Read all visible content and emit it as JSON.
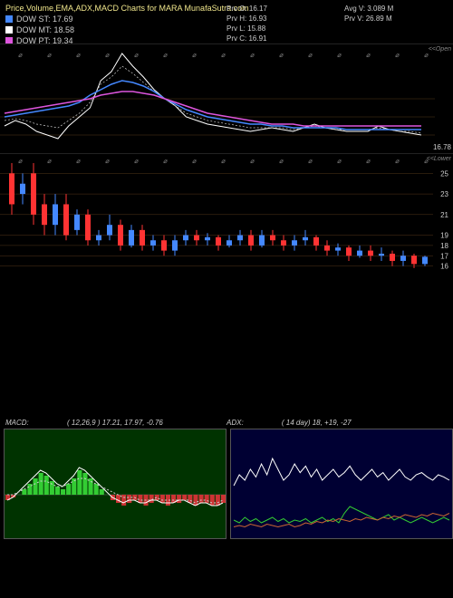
{
  "header": {
    "title": "Price,Volume,EMA,ADX,MACD Charts for MARA MunafaSutra.com",
    "legends": [
      {
        "color": "#4488ff",
        "label": "DOW ST: 17.69"
      },
      {
        "color": "#ffffff",
        "label": "DOW MT: 18.58"
      },
      {
        "color": "#dd55dd",
        "label": "DOW PT: 19.34"
      }
    ],
    "infoLeft": {
      "l1": "Prv   O: 16.17",
      "l2": "Prv   H: 16.93",
      "l3": "Prv   L: 15.88",
      "l4": "Prv   C: 16.91"
    },
    "infoRight": {
      "l1": "Avg V: 3.089 M",
      "l2": "Prv  V: 26.89 M"
    }
  },
  "panel1": {
    "cornerRight": "<<Open",
    "rightLabel": "16.78",
    "lines": {
      "white": [
        25,
        28,
        26,
        22,
        20,
        18,
        25,
        30,
        35,
        50,
        55,
        65,
        58,
        52,
        45,
        40,
        36,
        30,
        28,
        26,
        25,
        24,
        23,
        22,
        23,
        24,
        23,
        22,
        24,
        26,
        24,
        23,
        22,
        22,
        22,
        25,
        23,
        22,
        21,
        20
      ],
      "blue": [
        30,
        31,
        32,
        33,
        34,
        35,
        36,
        38,
        42,
        45,
        48,
        50,
        49,
        47,
        44,
        40,
        37,
        34,
        32,
        30,
        29,
        28,
        27,
        26,
        26,
        25,
        25,
        24,
        24,
        24,
        24,
        24,
        23,
        23,
        23,
        23,
        23,
        23,
        23,
        23
      ],
      "pink": [
        32,
        33,
        34,
        35,
        36,
        37,
        38,
        39,
        40,
        42,
        43,
        44,
        44,
        43,
        42,
        40,
        38,
        36,
        34,
        32,
        31,
        30,
        29,
        28,
        27,
        26,
        26,
        26,
        25,
        25,
        25,
        25,
        25,
        25,
        25,
        25,
        25,
        25,
        25,
        25
      ],
      "dashed": [
        28,
        29,
        28,
        26,
        25,
        24,
        28,
        32,
        38,
        48,
        52,
        58,
        54,
        49,
        44,
        40,
        36,
        32,
        30,
        28,
        27,
        26,
        25,
        24,
        24,
        24,
        24,
        23,
        24,
        25,
        24,
        23,
        23,
        23,
        23,
        24,
        23,
        22,
        22,
        21
      ]
    },
    "gridLevels": [
      20,
      30,
      40
    ],
    "height": 120
  },
  "panel2": {
    "cornerRight": "<<Lower",
    "yticks": [
      25,
      23,
      21,
      19,
      18,
      17,
      16
    ],
    "height": 140,
    "candles": [
      {
        "x": 10,
        "o": 25,
        "c": 22,
        "h": 26,
        "l": 21,
        "col": "#ff3333"
      },
      {
        "x": 22,
        "o": 23,
        "c": 24,
        "h": 25,
        "l": 22,
        "col": "#4488ff"
      },
      {
        "x": 34,
        "o": 25,
        "c": 21,
        "h": 26,
        "l": 20,
        "col": "#ff3333"
      },
      {
        "x": 46,
        "o": 22,
        "c": 20,
        "h": 23,
        "l": 19,
        "col": "#ff3333"
      },
      {
        "x": 58,
        "o": 20,
        "c": 22,
        "h": 23,
        "l": 19,
        "col": "#4488ff"
      },
      {
        "x": 70,
        "o": 22,
        "c": 19,
        "h": 23,
        "l": 18.5,
        "col": "#ff3333"
      },
      {
        "x": 82,
        "o": 19.5,
        "c": 21,
        "h": 21.5,
        "l": 19,
        "col": "#4488ff"
      },
      {
        "x": 94,
        "o": 21,
        "c": 18.5,
        "h": 21.5,
        "l": 18,
        "col": "#ff3333"
      },
      {
        "x": 106,
        "o": 18.5,
        "c": 19,
        "h": 19.5,
        "l": 18,
        "col": "#4488ff"
      },
      {
        "x": 118,
        "o": 19,
        "c": 20,
        "h": 21,
        "l": 18.5,
        "col": "#4488ff"
      },
      {
        "x": 130,
        "o": 20,
        "c": 18,
        "h": 20.5,
        "l": 17.5,
        "col": "#ff3333"
      },
      {
        "x": 142,
        "o": 18,
        "c": 19.5,
        "h": 20,
        "l": 17.8,
        "col": "#4488ff"
      },
      {
        "x": 154,
        "o": 19.5,
        "c": 18,
        "h": 20,
        "l": 17.5,
        "col": "#ff3333"
      },
      {
        "x": 166,
        "o": 18,
        "c": 18.5,
        "h": 19,
        "l": 17.5,
        "col": "#4488ff"
      },
      {
        "x": 178,
        "o": 18.5,
        "c": 17.5,
        "h": 19,
        "l": 17,
        "col": "#ff3333"
      },
      {
        "x": 190,
        "o": 17.5,
        "c": 18.5,
        "h": 19,
        "l": 17,
        "col": "#4488ff"
      },
      {
        "x": 202,
        "o": 18.5,
        "c": 19,
        "h": 19.5,
        "l": 18,
        "col": "#4488ff"
      },
      {
        "x": 214,
        "o": 19,
        "c": 18.5,
        "h": 19.5,
        "l": 18,
        "col": "#ff3333"
      },
      {
        "x": 226,
        "o": 18.5,
        "c": 18.8,
        "h": 19.2,
        "l": 18,
        "col": "#4488ff"
      },
      {
        "x": 238,
        "o": 18.8,
        "c": 18,
        "h": 19,
        "l": 17.5,
        "col": "#ff3333"
      },
      {
        "x": 250,
        "o": 18,
        "c": 18.5,
        "h": 19,
        "l": 17.8,
        "col": "#4488ff"
      },
      {
        "x": 262,
        "o": 18.5,
        "c": 19,
        "h": 19.5,
        "l": 18,
        "col": "#4488ff"
      },
      {
        "x": 274,
        "o": 19,
        "c": 18,
        "h": 19.5,
        "l": 17.5,
        "col": "#ff3333"
      },
      {
        "x": 286,
        "o": 18,
        "c": 19,
        "h": 19.5,
        "l": 17.8,
        "col": "#4488ff"
      },
      {
        "x": 298,
        "o": 19,
        "c": 18.5,
        "h": 19.5,
        "l": 18,
        "col": "#ff3333"
      },
      {
        "x": 310,
        "o": 18.5,
        "c": 18,
        "h": 19,
        "l": 17.5,
        "col": "#ff3333"
      },
      {
        "x": 322,
        "o": 18,
        "c": 18.5,
        "h": 19,
        "l": 17.5,
        "col": "#4488ff"
      },
      {
        "x": 334,
        "o": 18.5,
        "c": 18.8,
        "h": 19.5,
        "l": 18,
        "col": "#4488ff"
      },
      {
        "x": 346,
        "o": 18.8,
        "c": 18,
        "h": 19,
        "l": 17.5,
        "col": "#ff3333"
      },
      {
        "x": 358,
        "o": 18,
        "c": 17.5,
        "h": 18.5,
        "l": 17,
        "col": "#ff3333"
      },
      {
        "x": 370,
        "o": 17.5,
        "c": 17.8,
        "h": 18.2,
        "l": 17,
        "col": "#4488ff"
      },
      {
        "x": 382,
        "o": 17.8,
        "c": 17,
        "h": 18,
        "l": 16.5,
        "col": "#ff3333"
      },
      {
        "x": 394,
        "o": 17,
        "c": 17.5,
        "h": 18,
        "l": 16.8,
        "col": "#4488ff"
      },
      {
        "x": 406,
        "o": 17.5,
        "c": 17,
        "h": 18,
        "l": 16.5,
        "col": "#ff3333"
      },
      {
        "x": 418,
        "o": 17,
        "c": 17.2,
        "h": 17.8,
        "l": 16.5,
        "col": "#4488ff"
      },
      {
        "x": 430,
        "o": 17.2,
        "c": 16.5,
        "h": 17.5,
        "l": 16,
        "col": "#ff3333"
      },
      {
        "x": 442,
        "o": 16.5,
        "c": 17,
        "h": 17.5,
        "l": 16,
        "col": "#4488ff"
      },
      {
        "x": 454,
        "o": 17,
        "c": 16.2,
        "h": 17.2,
        "l": 15.8,
        "col": "#ff3333"
      },
      {
        "x": 466,
        "o": 16.2,
        "c": 16.9,
        "h": 17,
        "l": 16,
        "col": "#4488ff"
      }
    ]
  },
  "subHeader": {
    "macd": "MACD:",
    "macdVals": "( 12,26,9 ) 17.21,  17.97,  -0.76",
    "adx": "ADX:",
    "adxVals": "( 14   day) 18,  +19,  -27"
  },
  "macdPanel": {
    "bg": "#003300",
    "histColors": {
      "pos": "#33cc33",
      "neg": "#cc3333"
    },
    "hist": [
      -2,
      -1,
      0,
      2,
      4,
      6,
      8,
      7,
      5,
      3,
      2,
      4,
      6,
      9,
      8,
      6,
      4,
      2,
      0,
      -2,
      -3,
      -4,
      -3,
      -2,
      -3,
      -4,
      -3,
      -2,
      -3,
      -4,
      -3,
      -3,
      -2,
      -3,
      -4,
      -3,
      -3,
      -4,
      -4,
      -3
    ],
    "signal": [
      0,
      0,
      1,
      2,
      3,
      4,
      5,
      5,
      4,
      3,
      3,
      4,
      5,
      6,
      6,
      5,
      4,
      3,
      2,
      1,
      0,
      -1,
      -1,
      -1,
      -2,
      -2,
      -2,
      -1,
      -2,
      -2,
      -2,
      -2,
      -2,
      -2,
      -3,
      -2,
      -2,
      -3,
      -3,
      -2
    ],
    "macd": [
      -2,
      -1,
      1,
      3,
      5,
      7,
      9,
      8,
      6,
      4,
      3,
      5,
      7,
      10,
      9,
      7,
      5,
      3,
      1,
      -1,
      -2,
      -3,
      -2,
      -2,
      -3,
      -3,
      -2,
      -2,
      -3,
      -3,
      -3,
      -2,
      -2,
      -3,
      -4,
      -3,
      -3,
      -4,
      -4,
      -3
    ]
  },
  "adxPanel": {
    "bg": "#000033",
    "adx": [
      40,
      50,
      45,
      55,
      48,
      60,
      50,
      65,
      55,
      45,
      50,
      60,
      52,
      58,
      48,
      55,
      45,
      50,
      55,
      48,
      52,
      58,
      50,
      45,
      50,
      55,
      48,
      52,
      45,
      50,
      55,
      48,
      45,
      50,
      52,
      48,
      45,
      50,
      48,
      45
    ],
    "plus": [
      10,
      8,
      12,
      9,
      11,
      8,
      10,
      12,
      9,
      11,
      8,
      10,
      9,
      11,
      8,
      10,
      12,
      9,
      11,
      8,
      15,
      20,
      18,
      16,
      14,
      12,
      10,
      12,
      14,
      10,
      12,
      10,
      8,
      10,
      12,
      10,
      8,
      10,
      12,
      10
    ],
    "minus": [
      5,
      6,
      5,
      7,
      6,
      5,
      7,
      6,
      5,
      6,
      7,
      5,
      6,
      8,
      7,
      9,
      8,
      10,
      9,
      11,
      10,
      9,
      11,
      10,
      12,
      11,
      10,
      12,
      11,
      13,
      12,
      14,
      13,
      12,
      14,
      13,
      15,
      14,
      13,
      15
    ]
  }
}
